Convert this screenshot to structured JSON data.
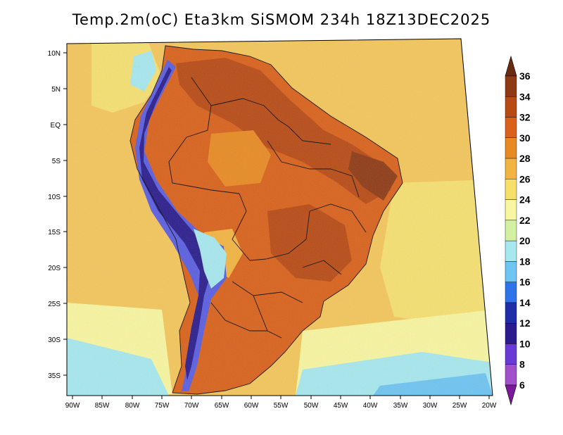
{
  "title": "Temp.2m(oC) Eta3km SiSMOM 234h 18Z13DEC2025",
  "lat_labels": [
    "10N",
    "5N",
    "EQ",
    "5S",
    "10S",
    "15S",
    "20S",
    "25S",
    "30S",
    "35S"
  ],
  "lon_labels": [
    "90W",
    "85W",
    "80W",
    "75W",
    "70W",
    "65W",
    "60W",
    "55W",
    "50W",
    "45W",
    "40W",
    "35W",
    "30W",
    "25W",
    "20W"
  ],
  "colorbar": {
    "labels": [
      "36",
      "34",
      "32",
      "30",
      "28",
      "26",
      "24",
      "22",
      "20",
      "18",
      "16",
      "14",
      "12",
      "10",
      "8",
      "6"
    ],
    "colors": [
      "#6a2a12",
      "#8e3a14",
      "#b84a14",
      "#d9611a",
      "#e88a22",
      "#f2b440",
      "#f6e06a",
      "#f8f6a0",
      "#d2f0a2",
      "#a6e8ee",
      "#6ec4f2",
      "#2f73e8",
      "#1f2ea8",
      "#2a1c8c",
      "#6a3ad6",
      "#a050c8",
      "#7a1a9a"
    ]
  },
  "colors": {
    "ocean_warm": "#f4c65a",
    "ocean_mid": "#f6e070",
    "ocean_cool": "#f8f6a0",
    "ocean_cold": "#a6e8ee",
    "land_hot": "#d9611a",
    "land_hotter": "#b84a14",
    "land_hottest": "#8e3a14",
    "andes": "#5a5ee0",
    "andes_cold": "#2a1c8c"
  }
}
